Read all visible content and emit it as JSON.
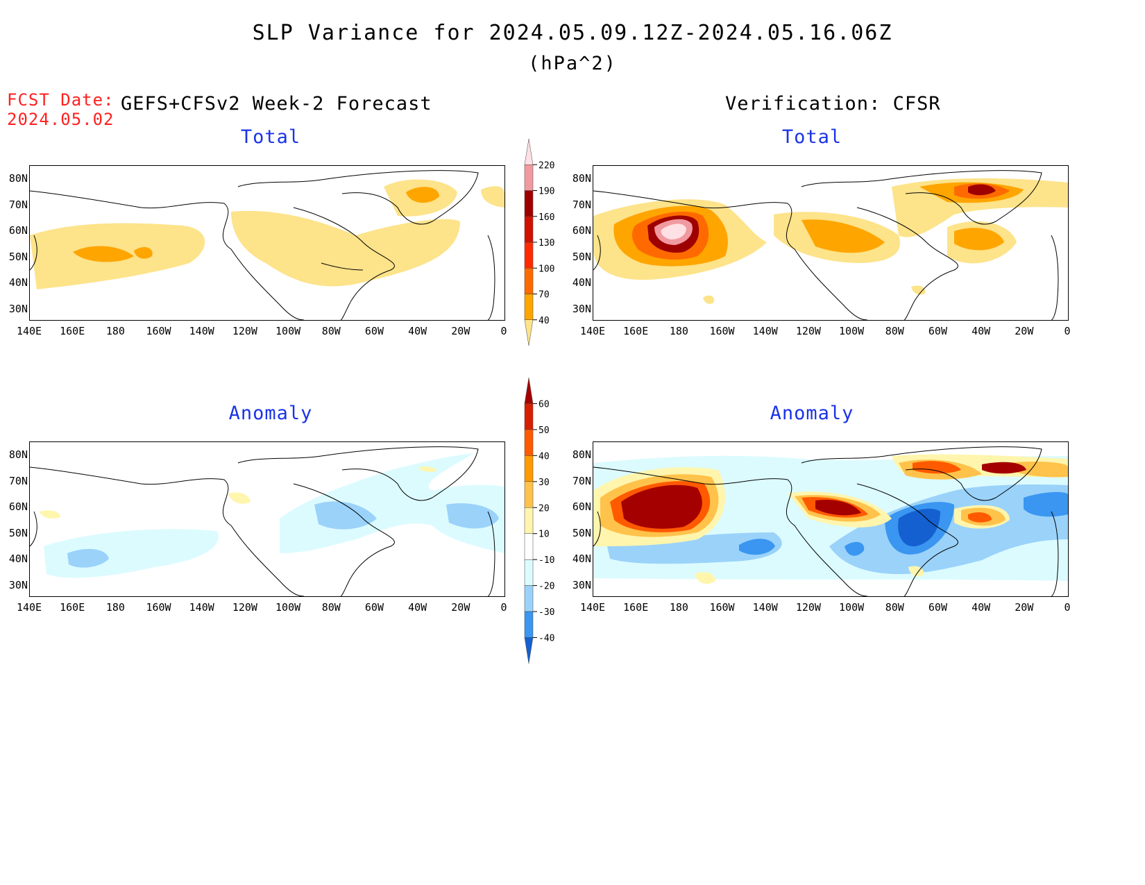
{
  "title": "SLP Variance for 2024.05.09.12Z-2024.05.16.06Z",
  "units": "(hPa^2)",
  "fcst": {
    "label": "FCST Date:",
    "date": "2024.05.02"
  },
  "forecast_heading": "GEFS+CFSv2 Week-2 Forecast",
  "verification_heading": "Verification: CFSR",
  "panels": {
    "top_left": "Total",
    "top_right": "Total",
    "bottom_left": "Anomaly",
    "bottom_right": "Anomaly"
  },
  "axes": {
    "lat_labels": [
      "80N",
      "70N",
      "60N",
      "50N",
      "40N",
      "30N"
    ],
    "lon_labels": [
      "140E",
      "160E",
      "180",
      "160W",
      "140W",
      "120W",
      "100W",
      "80W",
      "60W",
      "40W",
      "20W",
      "0"
    ]
  },
  "colorbars": {
    "total": {
      "levels": [
        "40",
        "70",
        "100",
        "130",
        "160",
        "190",
        "220"
      ],
      "colors": [
        "#fde38a",
        "#ffa500",
        "#ff6a00",
        "#ff2a00",
        "#d21000",
        "#9e0000",
        "#f09aa0",
        "#ffe0e4"
      ]
    },
    "anomaly": {
      "levels": [
        "60",
        "50",
        "40",
        "30",
        "20",
        "10",
        "-10",
        "-20",
        "-30",
        "-40"
      ],
      "colors": [
        "#a50000",
        "#d81e00",
        "#ff5a00",
        "#ff9a00",
        "#ffc24a",
        "#fff5ad",
        "#ffffff",
        "#dcfbff",
        "#9ad2fa",
        "#3a96f0",
        "#1560d0"
      ]
    }
  }
}
